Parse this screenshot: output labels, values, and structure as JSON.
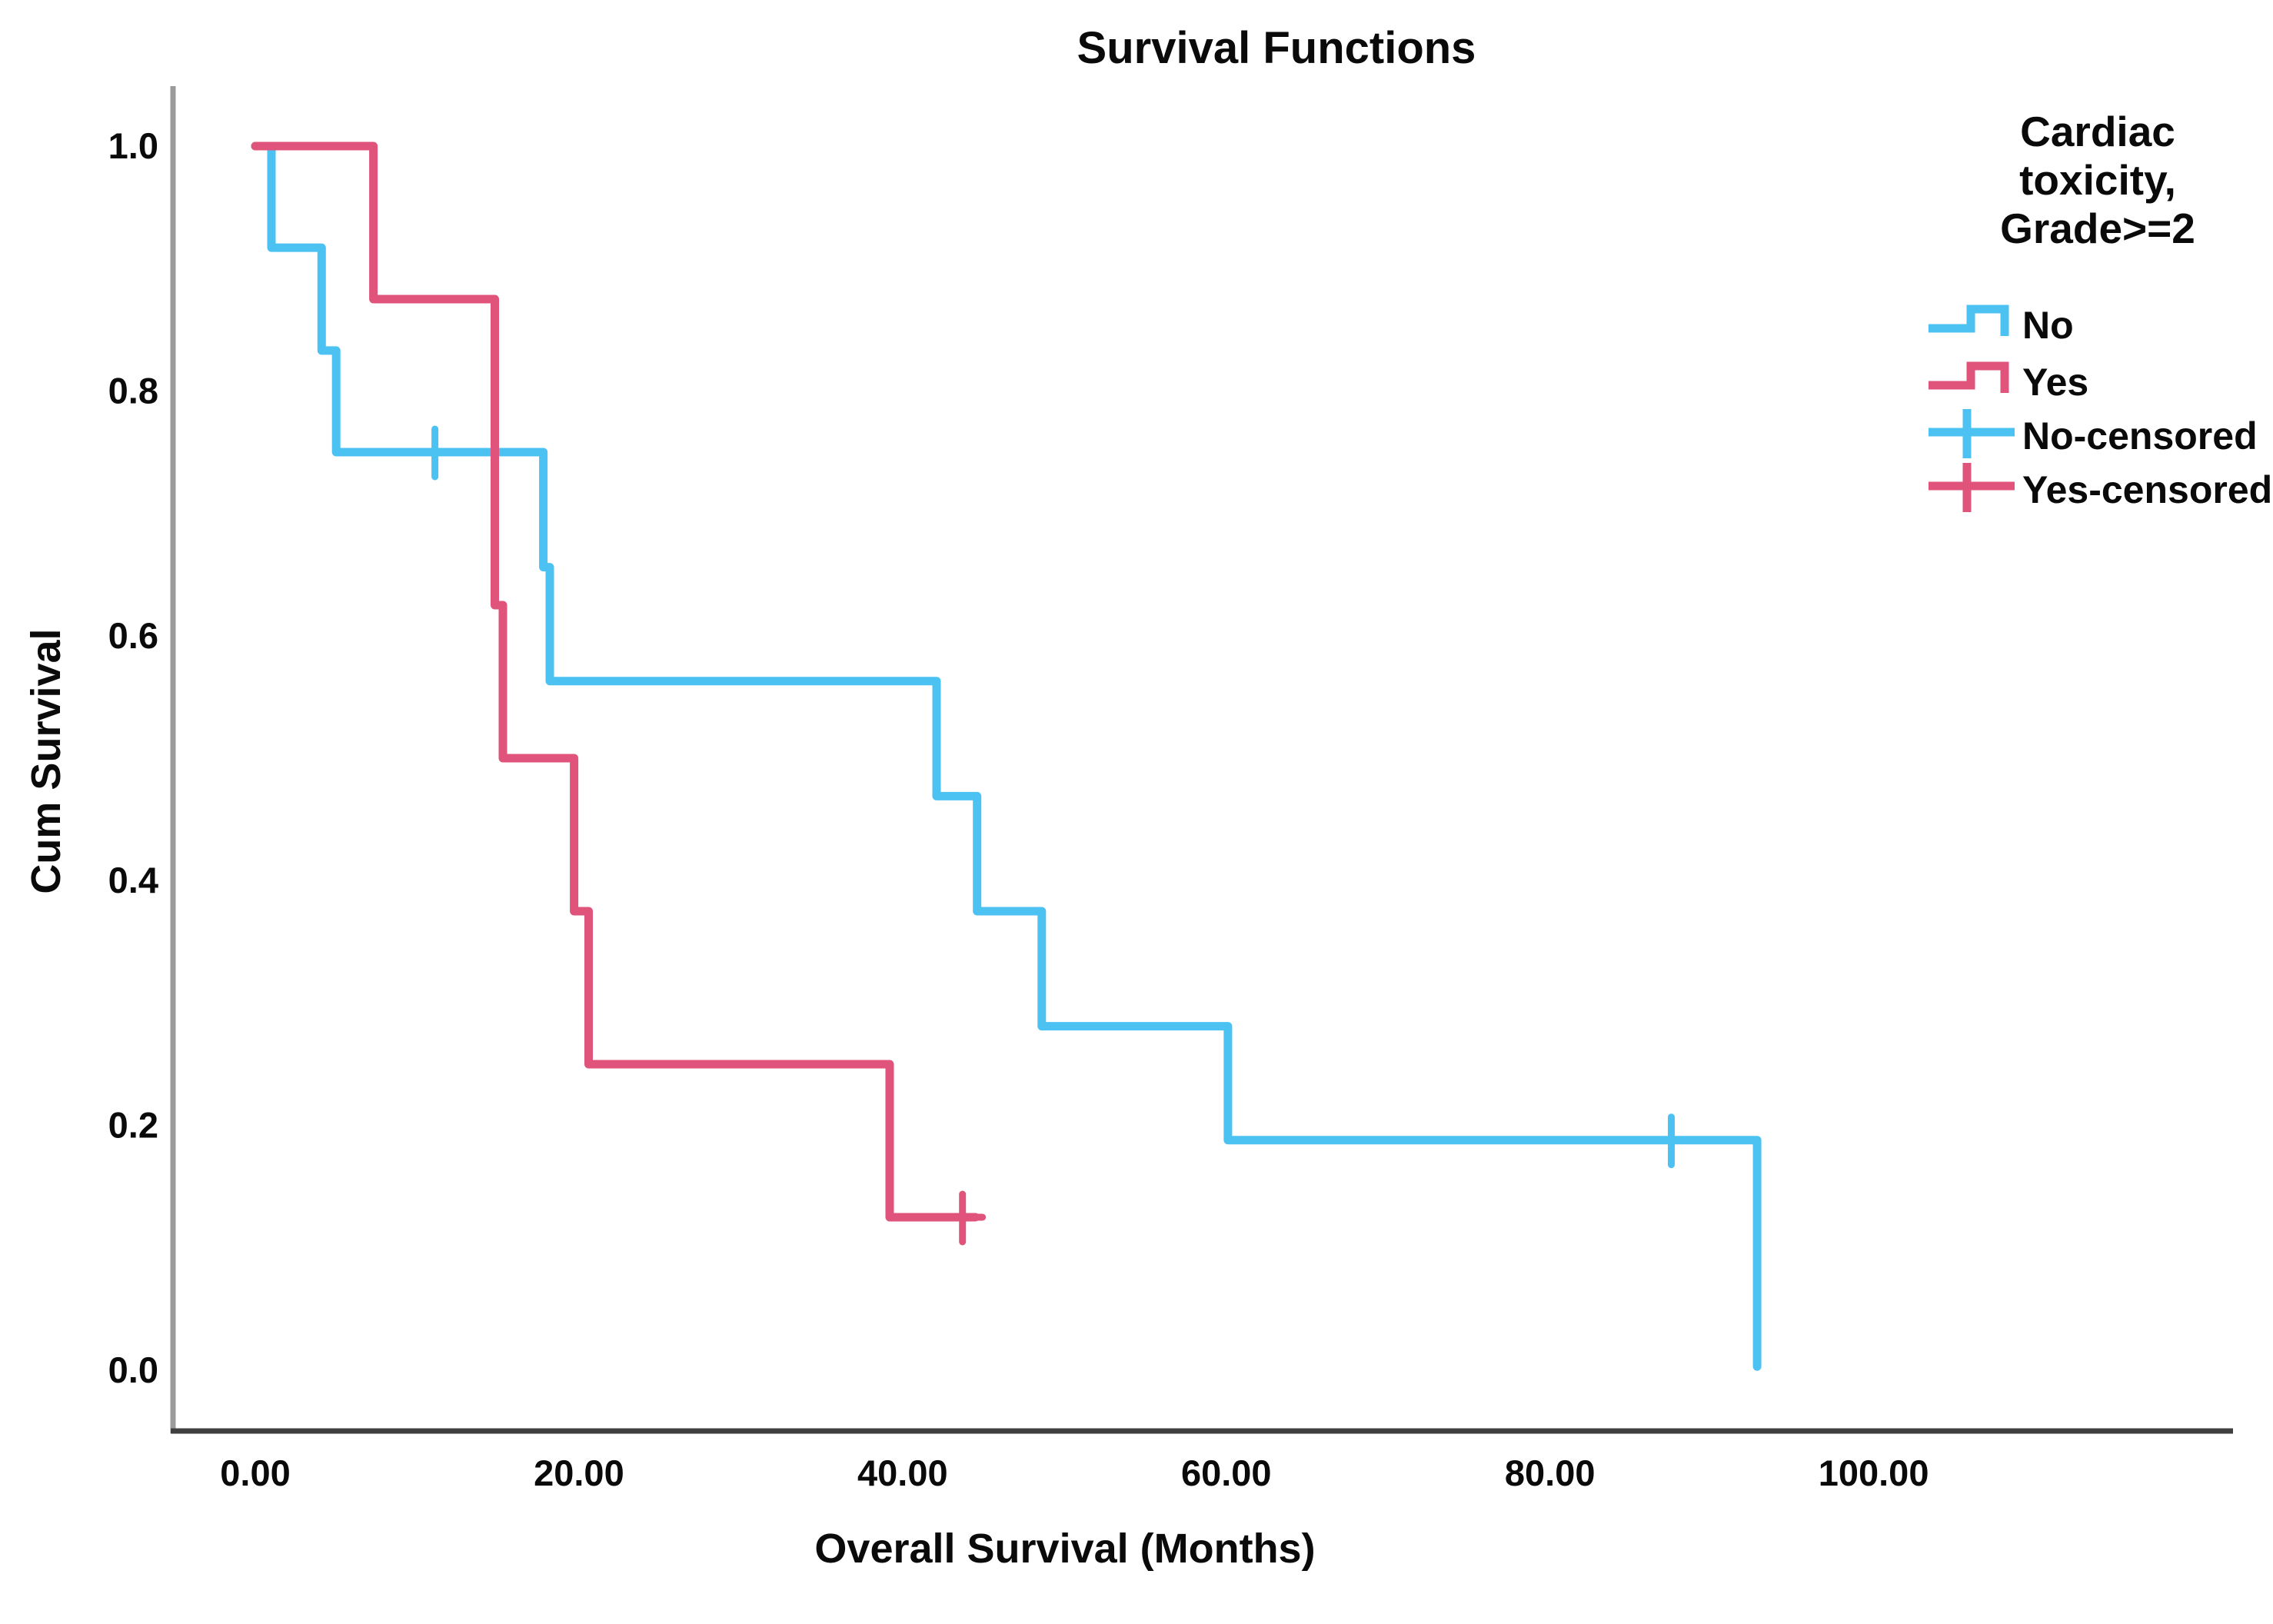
{
  "chart_data": {
    "type": "line",
    "subtype": "kaplan-meier-step",
    "title": "Survival Functions",
    "xlabel": "Overall Survival (Months)",
    "ylabel": "Cum Survival",
    "grid": false,
    "plot_background": "#ffffff",
    "xlim": [
      -5,
      122
    ],
    "ylim": [
      -0.05,
      1.05
    ],
    "xticks": {
      "values": [
        0,
        20,
        40,
        60,
        80,
        100
      ],
      "labels": [
        "0.00",
        "20.00",
        "40.00",
        "60.00",
        "80.00",
        "100.00"
      ]
    },
    "yticks": {
      "values": [
        0.0,
        0.2,
        0.4,
        0.6,
        0.8,
        1.0
      ],
      "labels": [
        "0.0",
        "0.2",
        "0.4",
        "0.6",
        "0.8",
        "1.0"
      ]
    },
    "series": [
      {
        "name": "No",
        "color": "#4cc2f3",
        "steps": [
          [
            0,
            1.0
          ],
          [
            1,
            1.0
          ],
          [
            1,
            0.917
          ],
          [
            4.1,
            0.917
          ],
          [
            4.1,
            0.833
          ],
          [
            5,
            0.833
          ],
          [
            5,
            0.75
          ],
          [
            17.8,
            0.75
          ],
          [
            17.8,
            0.656
          ],
          [
            18.2,
            0.656
          ],
          [
            18.2,
            0.563
          ],
          [
            42.1,
            0.563
          ],
          [
            42.1,
            0.469
          ],
          [
            44.6,
            0.469
          ],
          [
            44.6,
            0.375
          ],
          [
            48.6,
            0.375
          ],
          [
            48.6,
            0.281
          ],
          [
            60.1,
            0.281
          ],
          [
            60.1,
            0.188
          ],
          [
            92.8,
            0.188
          ],
          [
            92.8,
            0.003
          ]
        ],
        "censored": [
          [
            11.1,
            0.75
          ],
          [
            87.5,
            0.188
          ]
        ]
      },
      {
        "name": "Yes",
        "color": "#e0537a",
        "steps": [
          [
            0,
            1.0
          ],
          [
            7.3,
            1.0
          ],
          [
            7.3,
            0.875
          ],
          [
            14.8,
            0.875
          ],
          [
            14.8,
            0.625
          ],
          [
            15.3,
            0.625
          ],
          [
            15.3,
            0.5
          ],
          [
            19.7,
            0.5
          ],
          [
            19.7,
            0.375
          ],
          [
            20.6,
            0.375
          ],
          [
            20.6,
            0.25
          ],
          [
            39.2,
            0.25
          ],
          [
            39.2,
            0.125
          ],
          [
            44.5,
            0.125
          ]
        ],
        "censored": [
          [
            43.7,
            0.125
          ]
        ]
      }
    ],
    "legend": {
      "position": "right",
      "title_lines": [
        "Cardiac",
        "toxicity,",
        "Grade>=2"
      ],
      "entries": [
        {
          "label": "No",
          "marker": "step",
          "color": "#4cc2f3"
        },
        {
          "label": "Yes",
          "marker": "step",
          "color": "#e0537a"
        },
        {
          "label": "No-censored",
          "marker": "plus",
          "color": "#4cc2f3"
        },
        {
          "label": "Yes-censored",
          "marker": "plus",
          "color": "#e0537a"
        }
      ]
    },
    "colors": {
      "x_axis": "#3f3f3f",
      "y_axis": "#9b9b9b",
      "text": "#0a0a0a"
    }
  }
}
